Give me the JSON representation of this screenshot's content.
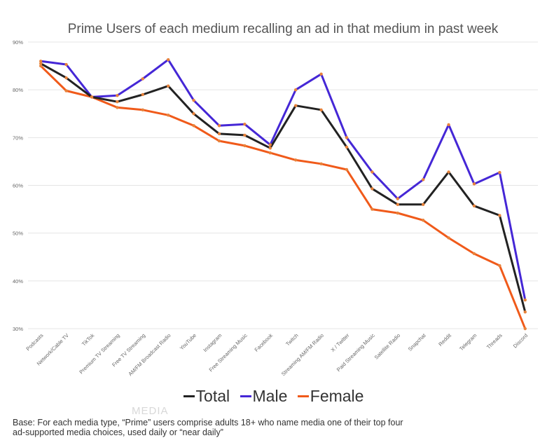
{
  "chart_data": {
    "type": "line",
    "title": "Prime Users of each medium recalling an ad in that medium in past week",
    "xlabel": "",
    "ylabel": "",
    "ylim": [
      30,
      90
    ],
    "yticks": [
      "30%",
      "40%",
      "50%",
      "60%",
      "70%",
      "80%",
      "90%"
    ],
    "ytick_values": [
      30,
      40,
      50,
      60,
      70,
      80,
      90
    ],
    "categories": [
      "Podcasts",
      "Network/Cable TV",
      "TikTok",
      "Premium TV Streaming",
      "Free TV Streaming",
      "AM/FM Broadcast Radio",
      "YouTube",
      "Instagram",
      "Free Streaming Music",
      "Facebook",
      "Twitch",
      "Streaming AM/FM Radio",
      "X / Twitter",
      "Paid Streaming Music",
      "Satellite Radio",
      "Snapchat",
      "Reddit",
      "Telegram",
      "Threads",
      "Discord"
    ],
    "series": [
      {
        "name": "Total",
        "color": "#222222",
        "values": [
          85.5,
          82.5,
          78.5,
          77.5,
          79.0,
          80.8,
          75.0,
          70.8,
          70.5,
          67.8,
          76.7,
          75.8,
          68.0,
          59.3,
          56.0,
          56.0,
          62.8,
          55.7,
          53.7,
          33.5
        ]
      },
      {
        "name": "Male",
        "color": "#4527d6",
        "values": [
          86.0,
          85.3,
          78.5,
          78.8,
          82.3,
          86.3,
          77.8,
          72.5,
          72.8,
          68.5,
          80.0,
          83.3,
          70.0,
          62.8,
          57.2,
          61.2,
          72.7,
          60.3,
          62.7,
          36.0
        ]
      },
      {
        "name": "Female",
        "color": "#f05a1a",
        "values": [
          85.0,
          79.8,
          78.5,
          76.3,
          75.8,
          74.7,
          72.5,
          69.3,
          68.3,
          66.8,
          65.3,
          64.5,
          63.3,
          55.0,
          54.2,
          52.7,
          49.0,
          45.7,
          43.2,
          30.0
        ]
      }
    ],
    "marker_color": "#e8823a",
    "grid": true,
    "legend_position": "bottom"
  },
  "legend": {
    "items": [
      {
        "label": "Total",
        "color": "#222222"
      },
      {
        "label": "Male",
        "color": "#4527d6"
      },
      {
        "label": "Female",
        "color": "#f05a1a"
      }
    ]
  },
  "footnote": {
    "line1": "Base: For each media type, “Prime” users comprise adults 18+ who name media one of their top four",
    "line2": "ad-supported media choices, used daily or “near daily”"
  },
  "watermark": {
    "text": "MEDIA"
  }
}
